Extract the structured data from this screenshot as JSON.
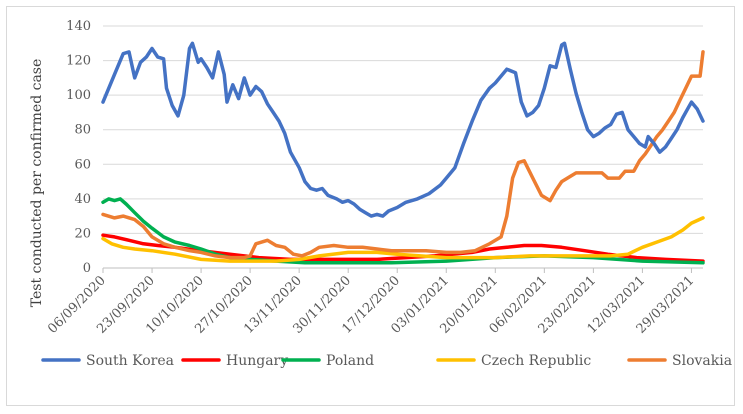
{
  "chart_data": {
    "type": "line",
    "title": "",
    "xlabel": "",
    "ylabel": "Test conducted per confirmed case",
    "ylim": [
      0,
      140
    ],
    "yticks": [
      0,
      20,
      40,
      60,
      80,
      100,
      120,
      140
    ],
    "xlim": [
      "06/09/2020",
      "02/04/2021"
    ],
    "xticks": [
      "06/09/2020",
      "23/09/2020",
      "10/10/2020",
      "27/10/2020",
      "13/11/2020",
      "30/11/2020",
      "17/12/2020",
      "03/01/2021",
      "20/01/2021",
      "06/02/2021",
      "23/02/2021",
      "12/03/2021",
      "29/03/2021"
    ],
    "grid": "horizontal",
    "legend": "bottom",
    "series": [
      {
        "name": "South Korea",
        "color": "#4472C4",
        "points": [
          [
            "06/09/2020",
            96
          ],
          [
            "10/09/2020",
            112
          ],
          [
            "13/09/2020",
            124
          ],
          [
            "15/09/2020",
            125
          ],
          [
            "17/09/2020",
            110
          ],
          [
            "19/09/2020",
            119
          ],
          [
            "21/09/2020",
            122
          ],
          [
            "23/09/2020",
            127
          ],
          [
            "25/09/2020",
            122
          ],
          [
            "27/09/2020",
            121
          ],
          [
            "28/09/2020",
            104
          ],
          [
            "30/09/2020",
            94
          ],
          [
            "02/10/2020",
            88
          ],
          [
            "04/10/2020",
            100
          ],
          [
            "06/10/2020",
            127
          ],
          [
            "07/10/2020",
            130
          ],
          [
            "09/10/2020",
            119
          ],
          [
            "10/10/2020",
            121
          ],
          [
            "12/10/2020",
            116
          ],
          [
            "14/10/2020",
            110
          ],
          [
            "16/10/2020",
            125
          ],
          [
            "18/10/2020",
            112
          ],
          [
            "19/10/2020",
            96
          ],
          [
            "21/10/2020",
            106
          ],
          [
            "23/10/2020",
            98
          ],
          [
            "25/10/2020",
            110
          ],
          [
            "27/10/2020",
            100
          ],
          [
            "29/10/2020",
            105
          ],
          [
            "31/10/2020",
            102
          ],
          [
            "02/11/2020",
            95
          ],
          [
            "04/11/2020",
            90
          ],
          [
            "06/11/2020",
            85
          ],
          [
            "08/11/2020",
            78
          ],
          [
            "10/11/2020",
            67
          ],
          [
            "13/11/2020",
            58
          ],
          [
            "15/11/2020",
            50
          ],
          [
            "17/11/2020",
            46
          ],
          [
            "19/11/2020",
            45
          ],
          [
            "21/11/2020",
            46
          ],
          [
            "23/11/2020",
            42
          ],
          [
            "26/11/2020",
            40
          ],
          [
            "28/11/2020",
            38
          ],
          [
            "30/11/2020",
            39
          ],
          [
            "02/12/2020",
            37
          ],
          [
            "04/12/2020",
            34
          ],
          [
            "06/12/2020",
            32
          ],
          [
            "08/12/2020",
            30
          ],
          [
            "10/12/2020",
            31
          ],
          [
            "12/12/2020",
            30
          ],
          [
            "14/12/2020",
            33
          ],
          [
            "17/12/2020",
            35
          ],
          [
            "20/12/2020",
            38
          ],
          [
            "24/12/2020",
            40
          ],
          [
            "28/12/2020",
            43
          ],
          [
            "01/01/2021",
            48
          ],
          [
            "03/01/2021",
            52
          ],
          [
            "06/01/2021",
            58
          ],
          [
            "09/01/2021",
            72
          ],
          [
            "12/01/2021",
            85
          ],
          [
            "15/01/2021",
            97
          ],
          [
            "18/01/2021",
            104
          ],
          [
            "20/01/2021",
            107
          ],
          [
            "24/01/2021",
            115
          ],
          [
            "27/01/2021",
            113
          ],
          [
            "29/01/2021",
            96
          ],
          [
            "31/01/2021",
            88
          ],
          [
            "02/02/2021",
            90
          ],
          [
            "04/02/2021",
            94
          ],
          [
            "06/02/2021",
            104
          ],
          [
            "08/02/2021",
            117
          ],
          [
            "10/02/2021",
            116
          ],
          [
            "12/02/2021",
            129
          ],
          [
            "13/02/2021",
            130
          ],
          [
            "15/02/2021",
            115
          ],
          [
            "17/02/2021",
            101
          ],
          [
            "19/02/2021",
            90
          ],
          [
            "21/02/2021",
            80
          ],
          [
            "23/02/2021",
            76
          ],
          [
            "25/02/2021",
            78
          ],
          [
            "27/02/2021",
            81
          ],
          [
            "01/03/2021",
            83
          ],
          [
            "03/03/2021",
            89
          ],
          [
            "05/03/2021",
            90
          ],
          [
            "07/03/2021",
            80
          ],
          [
            "09/03/2021",
            76
          ],
          [
            "11/03/2021",
            72
          ],
          [
            "13/03/2021",
            70
          ],
          [
            "14/03/2021",
            76
          ],
          [
            "16/03/2021",
            72
          ],
          [
            "18/03/2021",
            67
          ],
          [
            "20/03/2021",
            70
          ],
          [
            "22/03/2021",
            75
          ],
          [
            "24/03/2021",
            80
          ],
          [
            "26/03/2021",
            87
          ],
          [
            "28/03/2021",
            93
          ],
          [
            "29/03/2021",
            96
          ],
          [
            "31/03/2021",
            92
          ],
          [
            "02/04/2021",
            85
          ]
        ]
      },
      {
        "name": "Hungary",
        "color": "#FF0000",
        "points": [
          [
            "06/09/2020",
            19
          ],
          [
            "10/09/2020",
            18
          ],
          [
            "15/09/2020",
            16
          ],
          [
            "20/09/2020",
            14
          ],
          [
            "25/09/2020",
            13
          ],
          [
            "01/10/2020",
            12
          ],
          [
            "10/10/2020",
            10
          ],
          [
            "20/10/2020",
            8
          ],
          [
            "30/10/2020",
            6
          ],
          [
            "10/11/2020",
            5
          ],
          [
            "20/11/2020",
            5
          ],
          [
            "01/12/2020",
            5
          ],
          [
            "10/12/2020",
            5
          ],
          [
            "20/12/2020",
            6
          ],
          [
            "30/12/2020",
            7
          ],
          [
            "05/01/2021",
            8
          ],
          [
            "12/01/2021",
            9
          ],
          [
            "18/01/2021",
            11
          ],
          [
            "24/01/2021",
            12
          ],
          [
            "30/01/2021",
            13
          ],
          [
            "05/02/2021",
            13
          ],
          [
            "12/02/2021",
            12
          ],
          [
            "20/02/2021",
            10
          ],
          [
            "28/02/2021",
            8
          ],
          [
            "10/03/2021",
            6
          ],
          [
            "20/03/2021",
            5
          ],
          [
            "02/04/2021",
            4
          ]
        ]
      },
      {
        "name": "Poland",
        "color": "#00B050",
        "points": [
          [
            "06/09/2020",
            38
          ],
          [
            "08/09/2020",
            40
          ],
          [
            "10/09/2020",
            39
          ],
          [
            "12/09/2020",
            40
          ],
          [
            "14/09/2020",
            37
          ],
          [
            "17/09/2020",
            32
          ],
          [
            "20/09/2020",
            27
          ],
          [
            "23/09/2020",
            23
          ],
          [
            "27/09/2020",
            18
          ],
          [
            "01/10/2020",
            15
          ],
          [
            "06/10/2020",
            13
          ],
          [
            "10/10/2020",
            11
          ],
          [
            "15/10/2020",
            8
          ],
          [
            "20/10/2020",
            6
          ],
          [
            "27/10/2020",
            5
          ],
          [
            "05/11/2020",
            4
          ],
          [
            "15/11/2020",
            3
          ],
          [
            "30/11/2020",
            3
          ],
          [
            "15/12/2020",
            3
          ],
          [
            "03/01/2021",
            4
          ],
          [
            "20/01/2021",
            6
          ],
          [
            "06/02/2021",
            7
          ],
          [
            "23/02/2021",
            6
          ],
          [
            "12/03/2021",
            4
          ],
          [
            "02/04/2021",
            3
          ]
        ]
      },
      {
        "name": "Czech Republic",
        "color": "#FFC000",
        "points": [
          [
            "06/09/2020",
            17
          ],
          [
            "09/09/2020",
            14
          ],
          [
            "13/09/2020",
            12
          ],
          [
            "17/09/2020",
            11
          ],
          [
            "23/09/2020",
            10
          ],
          [
            "01/10/2020",
            8
          ],
          [
            "10/10/2020",
            5
          ],
          [
            "20/10/2020",
            4
          ],
          [
            "27/10/2020",
            4
          ],
          [
            "05/11/2020",
            4
          ],
          [
            "13/11/2020",
            5
          ],
          [
            "20/11/2020",
            7
          ],
          [
            "30/11/2020",
            9
          ],
          [
            "10/12/2020",
            9
          ],
          [
            "17/12/2020",
            8
          ],
          [
            "25/12/2020",
            7
          ],
          [
            "03/01/2021",
            6
          ],
          [
            "12/01/2021",
            6
          ],
          [
            "20/01/2021",
            6
          ],
          [
            "01/02/2021",
            7
          ],
          [
            "10/02/2021",
            7
          ],
          [
            "20/02/2021",
            7
          ],
          [
            "01/03/2021",
            7
          ],
          [
            "07/03/2021",
            8
          ],
          [
            "12/03/2021",
            12
          ],
          [
            "17/03/2021",
            15
          ],
          [
            "22/03/2021",
            18
          ],
          [
            "26/03/2021",
            22
          ],
          [
            "29/03/2021",
            26
          ],
          [
            "02/04/2021",
            29
          ]
        ]
      },
      {
        "name": "Slovakia",
        "color": "#ED7D31",
        "points": [
          [
            "06/09/2020",
            31
          ],
          [
            "10/09/2020",
            29
          ],
          [
            "13/09/2020",
            30
          ],
          [
            "17/09/2020",
            28
          ],
          [
            "20/09/2020",
            24
          ],
          [
            "23/09/2020",
            18
          ],
          [
            "27/09/2020",
            14
          ],
          [
            "01/10/2020",
            12
          ],
          [
            "06/10/2020",
            10
          ],
          [
            "10/10/2020",
            9
          ],
          [
            "15/10/2020",
            7
          ],
          [
            "20/10/2020",
            6
          ],
          [
            "25/10/2020",
            6
          ],
          [
            "27/10/2020",
            7
          ],
          [
            "29/10/2020",
            14
          ],
          [
            "02/11/2020",
            16
          ],
          [
            "05/11/2020",
            13
          ],
          [
            "08/11/2020",
            12
          ],
          [
            "11/11/2020",
            8
          ],
          [
            "14/11/2020",
            7
          ],
          [
            "17/11/2020",
            9
          ],
          [
            "20/11/2020",
            12
          ],
          [
            "25/11/2020",
            13
          ],
          [
            "30/11/2020",
            12
          ],
          [
            "05/12/2020",
            12
          ],
          [
            "10/12/2020",
            11
          ],
          [
            "15/12/2020",
            10
          ],
          [
            "20/12/2020",
            10
          ],
          [
            "27/12/2020",
            10
          ],
          [
            "03/01/2021",
            9
          ],
          [
            "08/01/2021",
            9
          ],
          [
            "13/01/2021",
            10
          ],
          [
            "18/01/2021",
            14
          ],
          [
            "22/01/2021",
            18
          ],
          [
            "24/01/2021",
            30
          ],
          [
            "26/01/2021",
            52
          ],
          [
            "28/01/2021",
            61
          ],
          [
            "30/01/2021",
            62
          ],
          [
            "02/02/2021",
            52
          ],
          [
            "05/02/2021",
            42
          ],
          [
            "08/02/2021",
            39
          ],
          [
            "10/02/2021",
            45
          ],
          [
            "12/02/2021",
            50
          ],
          [
            "15/02/2021",
            53
          ],
          [
            "17/02/2021",
            55
          ],
          [
            "23/02/2021",
            55
          ],
          [
            "26/02/2021",
            55
          ],
          [
            "28/02/2021",
            52
          ],
          [
            "04/03/2021",
            52
          ],
          [
            "06/03/2021",
            56
          ],
          [
            "09/03/2021",
            56
          ],
          [
            "11/03/2021",
            62
          ],
          [
            "13/03/2021",
            66
          ],
          [
            "15/03/2021",
            71
          ],
          [
            "17/03/2021",
            76
          ],
          [
            "19/03/2021",
            80
          ],
          [
            "21/03/2021",
            85
          ],
          [
            "23/03/2021",
            90
          ],
          [
            "25/03/2021",
            97
          ],
          [
            "27/03/2021",
            104
          ],
          [
            "29/03/2021",
            111
          ],
          [
            "01/04/2021",
            111
          ],
          [
            "02/04/2021",
            125
          ]
        ]
      }
    ]
  }
}
